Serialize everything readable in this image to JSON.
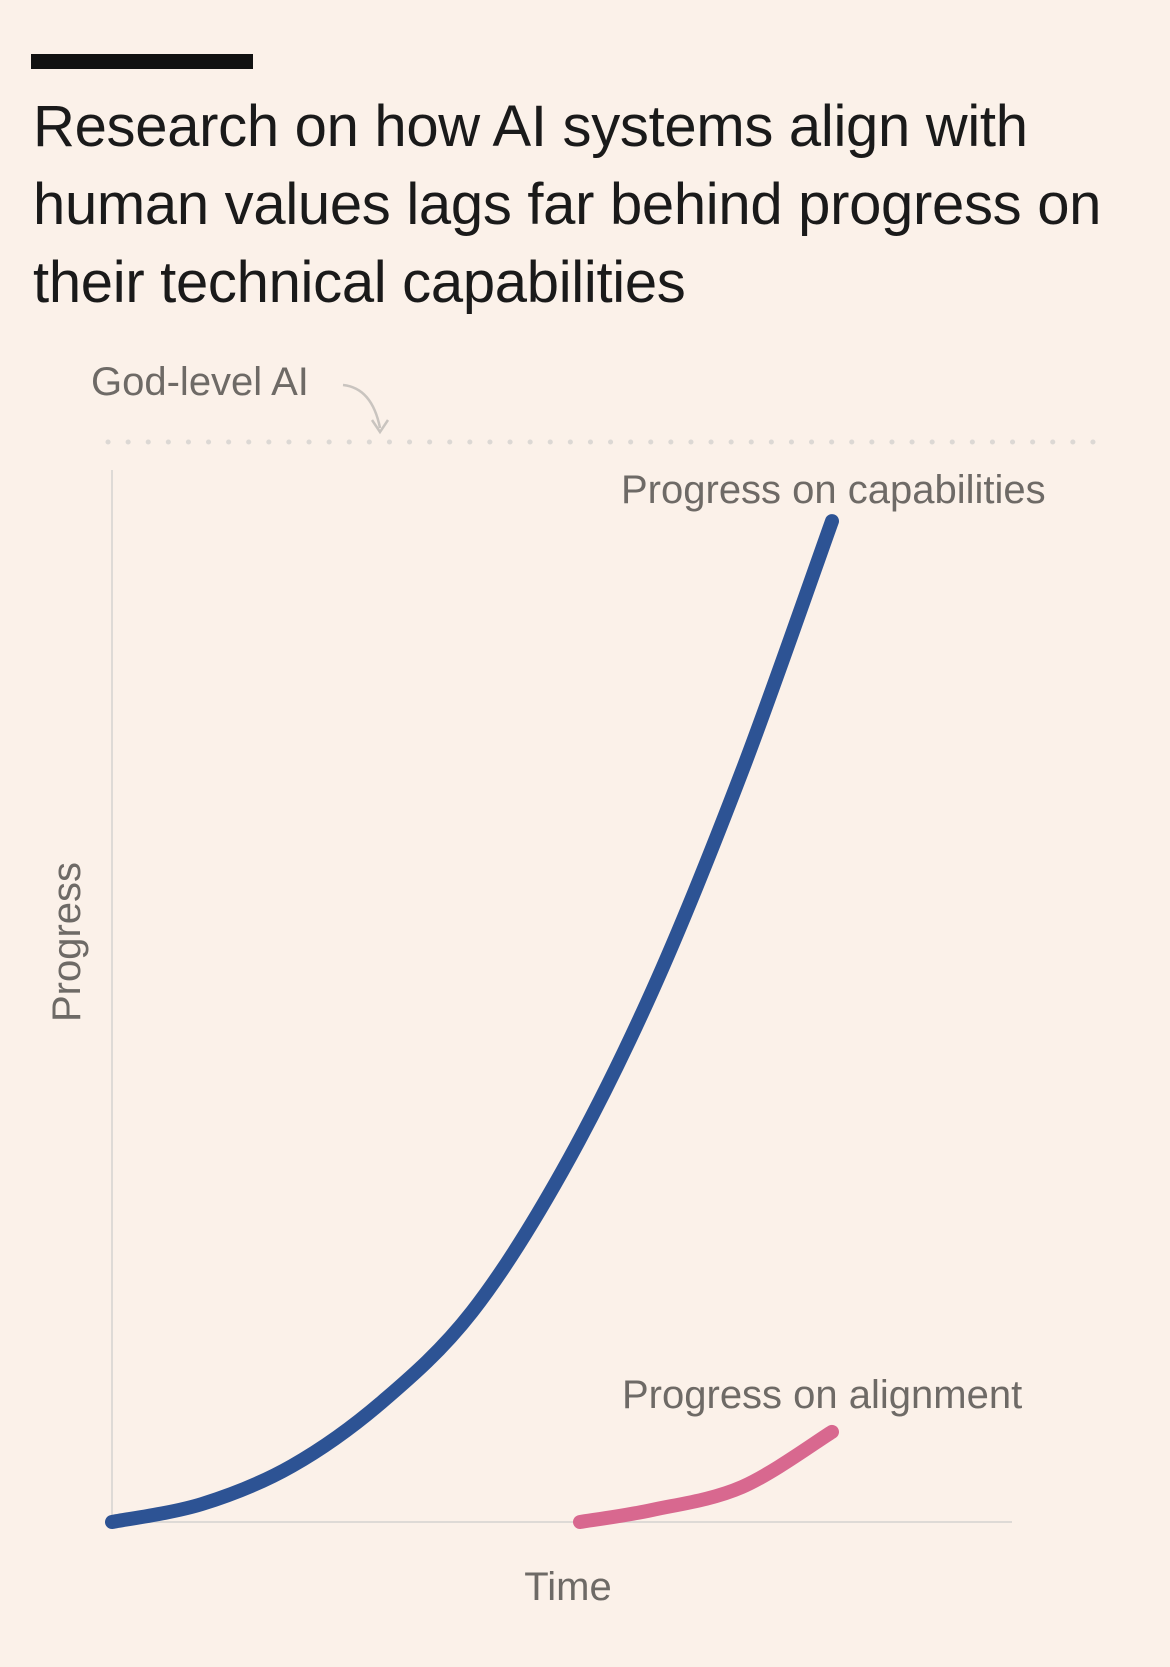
{
  "header": {
    "title": "Research on how AI systems align with human values lags far behind progress on their technical capabilities"
  },
  "chart_data": {
    "type": "line",
    "title": "Research on how AI systems align with human values lags far behind progress on their technical capabilities",
    "xlabel": "Time",
    "ylabel": "Progress",
    "xlim": [
      0,
      100
    ],
    "ylim": [
      0,
      110
    ],
    "grid": false,
    "reference_line": {
      "label": "God-level AI",
      "y": 110,
      "style": "dotted"
    },
    "series": [
      {
        "name": "Progress on capabilities",
        "color": "#2D5394",
        "x": [
          0,
          10,
          20,
          30,
          40,
          50,
          60,
          70,
          80
        ],
        "y": [
          0,
          1.8,
          5.6,
          12,
          21,
          35,
          53,
          75,
          100
        ]
      },
      {
        "name": "Progress on alignment",
        "color": "#D8688F",
        "x": [
          52,
          60,
          70,
          80
        ],
        "y": [
          0,
          1.2,
          3.5,
          9
        ]
      }
    ]
  }
}
